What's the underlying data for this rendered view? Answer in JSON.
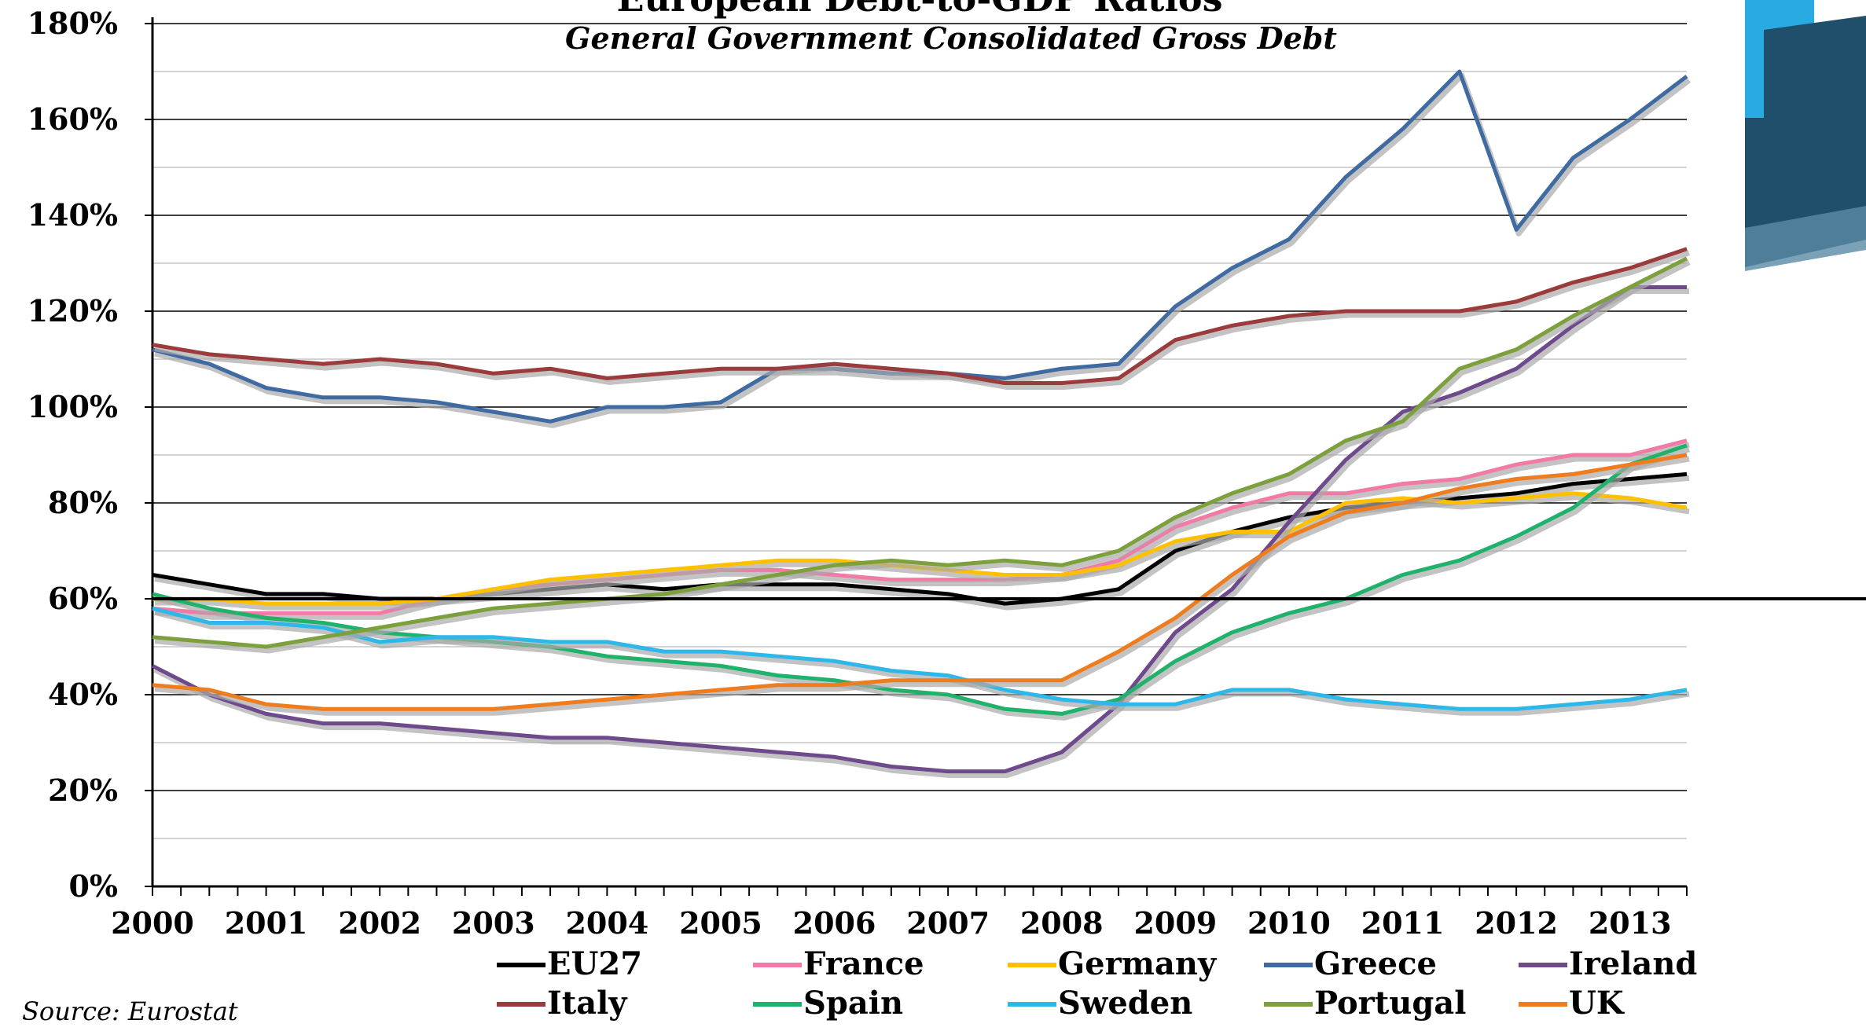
{
  "chart_data": {
    "type": "line",
    "title": "European Debt-to-GDP Ratios",
    "subtitle": "General Government Consolidated Gross Debt",
    "source": "Source: Eurostat",
    "ylim": [
      0,
      180
    ],
    "yticks": [
      "0%",
      "20%",
      "40%",
      "60%",
      "80%",
      "100%",
      "120%",
      "140%",
      "160%",
      "180%"
    ],
    "xlim": [
      2000,
      2013.5
    ],
    "xticks": [
      "2000",
      "2001",
      "2002",
      "2003",
      "2004",
      "2005",
      "2006",
      "2007",
      "2008",
      "2009",
      "2010",
      "2011",
      "2012",
      "2013"
    ],
    "reference_line": 60,
    "grid": true,
    "legend_position": "bottom",
    "x": [
      2000,
      2000.5,
      2001,
      2001.5,
      2002,
      2002.5,
      2003,
      2003.5,
      2004,
      2004.5,
      2005,
      2005.5,
      2006,
      2006.5,
      2007,
      2007.5,
      2008,
      2008.5,
      2009,
      2009.5,
      2010,
      2010.5,
      2011,
      2011.5,
      2012,
      2012.5,
      2013,
      2013.5
    ],
    "series": [
      {
        "name": "EU27",
        "color": "#000000",
        "values": [
          65,
          63,
          61,
          61,
          60,
          60,
          61,
          62,
          63,
          62,
          63,
          63,
          63,
          62,
          61,
          59,
          60,
          62,
          70,
          74,
          77,
          79,
          80,
          81,
          82,
          84,
          85,
          86
        ]
      },
      {
        "name": "France",
        "color": "#f27aa6",
        "values": [
          58,
          57,
          57,
          57,
          57,
          60,
          62,
          63,
          64,
          65,
          66,
          66,
          65,
          64,
          64,
          64,
          65,
          68,
          75,
          79,
          82,
          82,
          84,
          85,
          88,
          90,
          90,
          93
        ]
      },
      {
        "name": "Germany",
        "color": "#ffc000",
        "values": [
          60,
          60,
          59,
          59,
          59,
          60,
          62,
          64,
          65,
          66,
          67,
          68,
          68,
          67,
          66,
          65,
          65,
          67,
          72,
          74,
          74,
          80,
          81,
          80,
          81,
          82,
          81,
          79
        ]
      },
      {
        "name": "Greece",
        "color": "#3f6aa2",
        "values": [
          112,
          109,
          104,
          102,
          102,
          101,
          99,
          97,
          100,
          100,
          101,
          108,
          108,
          107,
          107,
          106,
          108,
          109,
          121,
          129,
          135,
          148,
          158,
          170,
          137,
          152,
          160,
          169
        ]
      },
      {
        "name": "Ireland",
        "color": "#6e4a8c",
        "values": [
          46,
          40,
          36,
          34,
          34,
          33,
          32,
          31,
          31,
          30,
          29,
          28,
          27,
          25,
          24,
          24,
          28,
          38,
          53,
          62,
          76,
          89,
          99,
          103,
          108,
          117,
          125,
          125
        ]
      },
      {
        "name": "Italy",
        "color": "#9b3b3b",
        "values": [
          113,
          111,
          110,
          109,
          110,
          109,
          107,
          108,
          106,
          107,
          108,
          108,
          109,
          108,
          107,
          105,
          105,
          106,
          114,
          117,
          119,
          120,
          120,
          120,
          122,
          126,
          129,
          133
        ]
      },
      {
        "name": "Spain",
        "color": "#20b26b",
        "values": [
          61,
          58,
          56,
          55,
          53,
          52,
          51,
          50,
          48,
          47,
          46,
          44,
          43,
          41,
          40,
          37,
          36,
          39,
          47,
          53,
          57,
          60,
          65,
          68,
          73,
          79,
          88,
          92
        ]
      },
      {
        "name": "Sweden",
        "color": "#2eb8ea",
        "values": [
          58,
          55,
          55,
          54,
          51,
          52,
          52,
          51,
          51,
          49,
          49,
          48,
          47,
          45,
          44,
          41,
          39,
          38,
          38,
          41,
          41,
          39,
          38,
          37,
          37,
          38,
          39,
          41
        ]
      },
      {
        "name": "Portugal",
        "color": "#7ba03c",
        "values": [
          52,
          51,
          50,
          52,
          54,
          56,
          58,
          59,
          60,
          61,
          63,
          65,
          67,
          68,
          67,
          68,
          67,
          70,
          77,
          82,
          86,
          93,
          97,
          108,
          112,
          119,
          125,
          131
        ]
      },
      {
        "name": "UK",
        "color": "#ee7d20",
        "values": [
          42,
          41,
          38,
          37,
          37,
          37,
          37,
          38,
          39,
          40,
          41,
          42,
          42,
          43,
          43,
          43,
          43,
          49,
          56,
          65,
          73,
          78,
          80,
          83,
          85,
          86,
          88,
          90
        ]
      }
    ]
  }
}
